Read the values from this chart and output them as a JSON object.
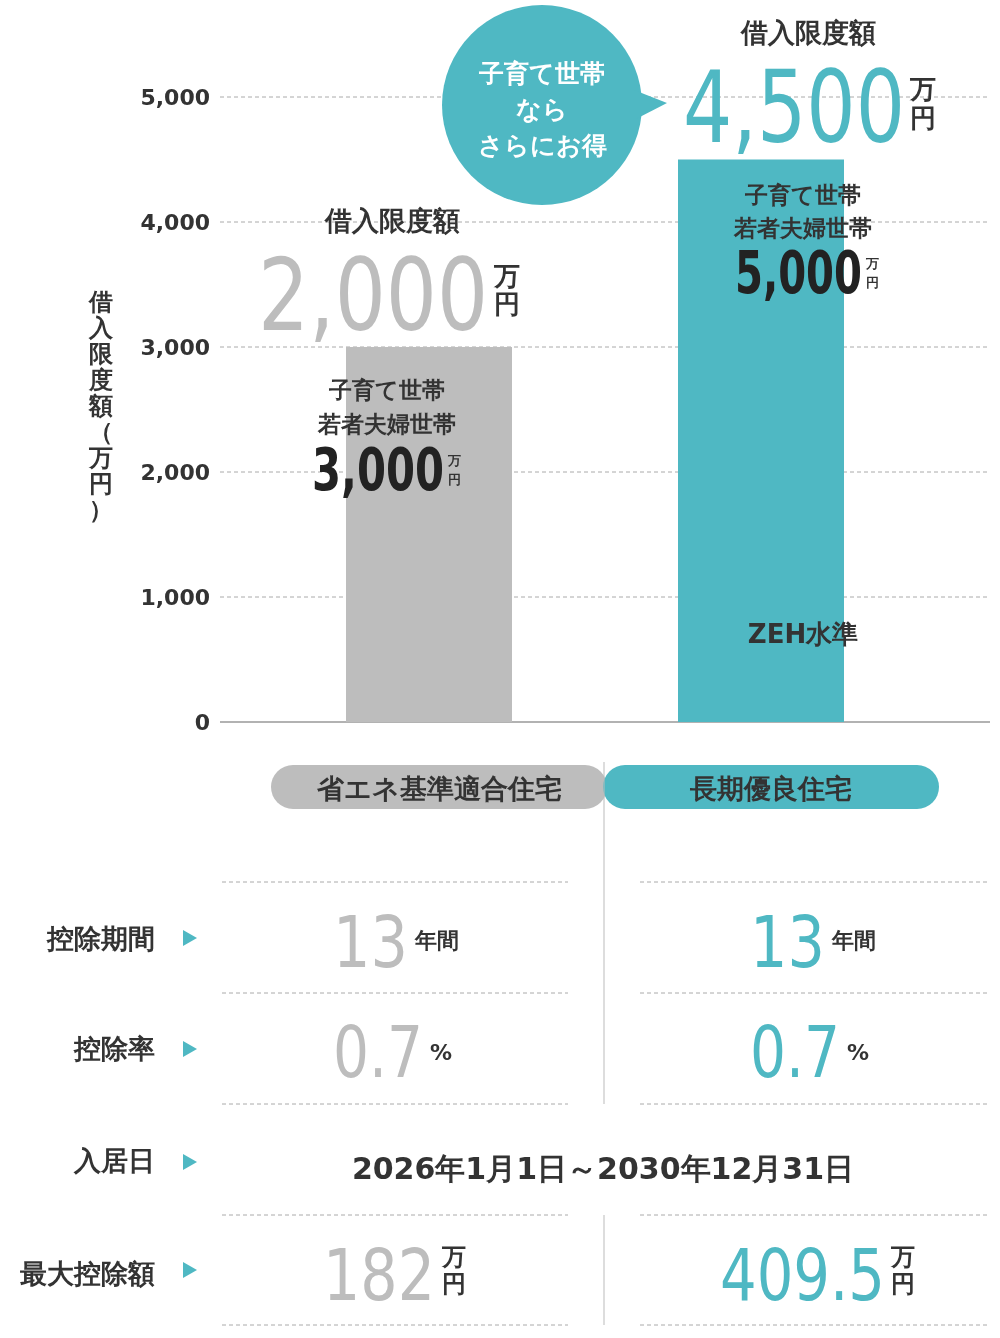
{
  "chart_data": {
    "type": "bar",
    "ylabel": "借入限度額（万円）",
    "categories": [
      "省エネ基準適合住宅",
      "長期優良住宅"
    ],
    "values": [
      3000,
      4500
    ],
    "colors": [
      "#bdbdbd",
      "#4fb8c3"
    ],
    "ylim": [
      0,
      5000
    ],
    "yticks": [
      0,
      {
        "value": 1000,
        "label": "1,000"
      },
      {
        "value": 2000,
        "label": "2,000"
      },
      {
        "value": 3000,
        "label": "3,000"
      },
      {
        "value": 4000,
        "label": "4,000"
      },
      {
        "value": 5000,
        "label": "5,000"
      }
    ],
    "grid": "y",
    "annotations": [
      "子育て世帯",
      "なら",
      "さらにお得",
      "借入限度額",
      "2,000万円",
      "子育て世帯",
      "若者夫婦世帯",
      "3,000万円",
      "借入限度額",
      "4,500万円",
      "子育て世帯",
      "若者夫婦世帯",
      "5,000万円",
      "ZEH水準",
      "控除期間",
      "13年間",
      "13年間",
      "控除率",
      "0.7%",
      "0.7%",
      "入居日",
      "2026年1月1日～2030年12月31日",
      "最大控除額",
      "182万円",
      "409.5万円"
    ]
  }
}
